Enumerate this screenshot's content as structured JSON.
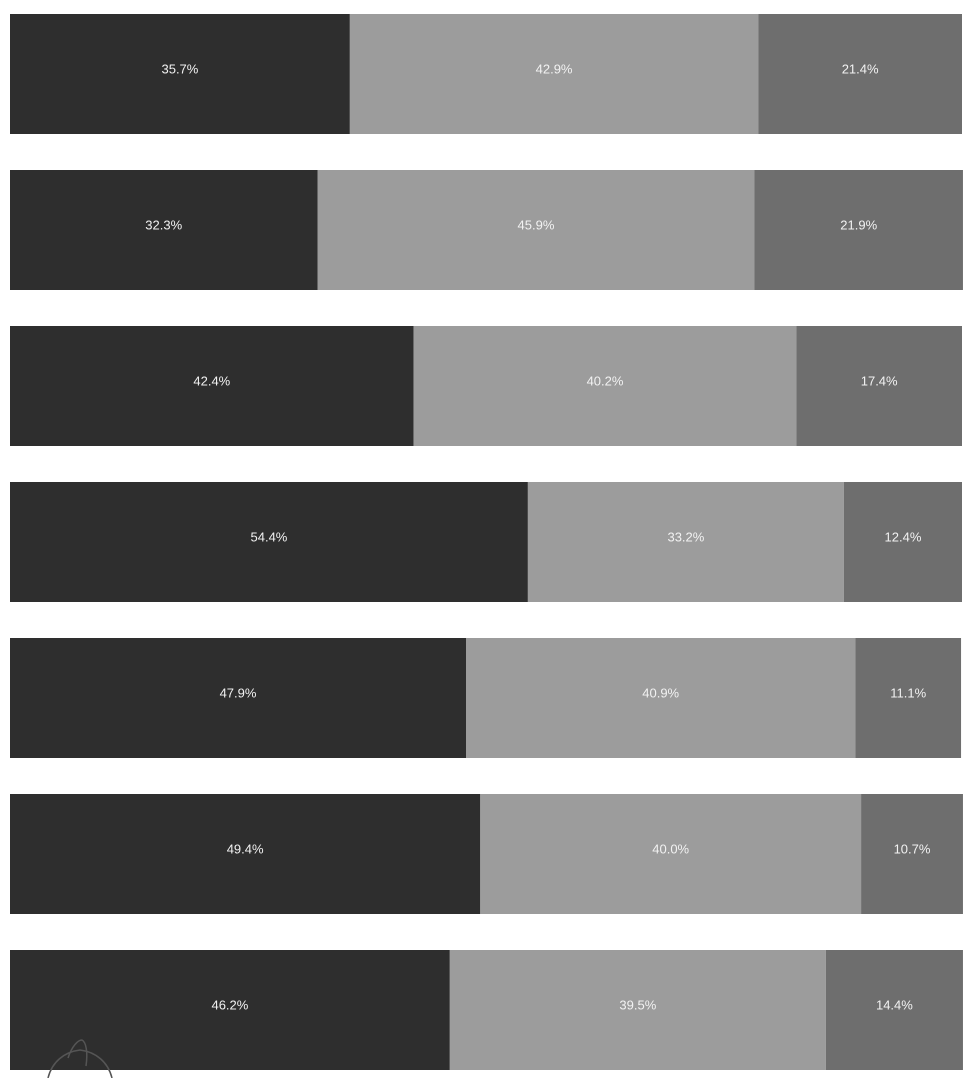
{
  "chart_data": {
    "type": "bar",
    "orientation": "horizontal",
    "stacked": true,
    "normalized": true,
    "categories": [
      "",
      "",
      "",
      "",
      "",
      "",
      ""
    ],
    "series": [
      {
        "values": [
          35.7,
          32.3,
          42.4,
          54.4,
          47.9,
          49.4,
          46.2
        ],
        "labels": [
          "35.7%",
          "32.3%",
          "42.4%",
          "54.4%",
          "47.9%",
          "49.4%",
          "46.2%"
        ]
      },
      {
        "values": [
          42.9,
          45.9,
          40.2,
          33.2,
          40.9,
          40.0,
          39.5
        ],
        "labels": [
          "42.9%",
          "45.9%",
          "40.2%",
          "33.2%",
          "40.9%",
          "40.0%",
          "39.5%"
        ]
      },
      {
        "values": [
          21.4,
          21.9,
          17.4,
          12.4,
          11.1,
          10.7,
          14.4
        ],
        "labels": [
          "21.4%",
          "21.9%",
          "17.4%",
          "12.4%",
          "11.1%",
          "10.7%",
          "14.4%"
        ]
      }
    ],
    "xlim": [
      0,
      100
    ],
    "grid": false,
    "legend": "none",
    "colors": [
      "#2e2e2e",
      "#9c9c9c",
      "#6e6e6e"
    ]
  }
}
